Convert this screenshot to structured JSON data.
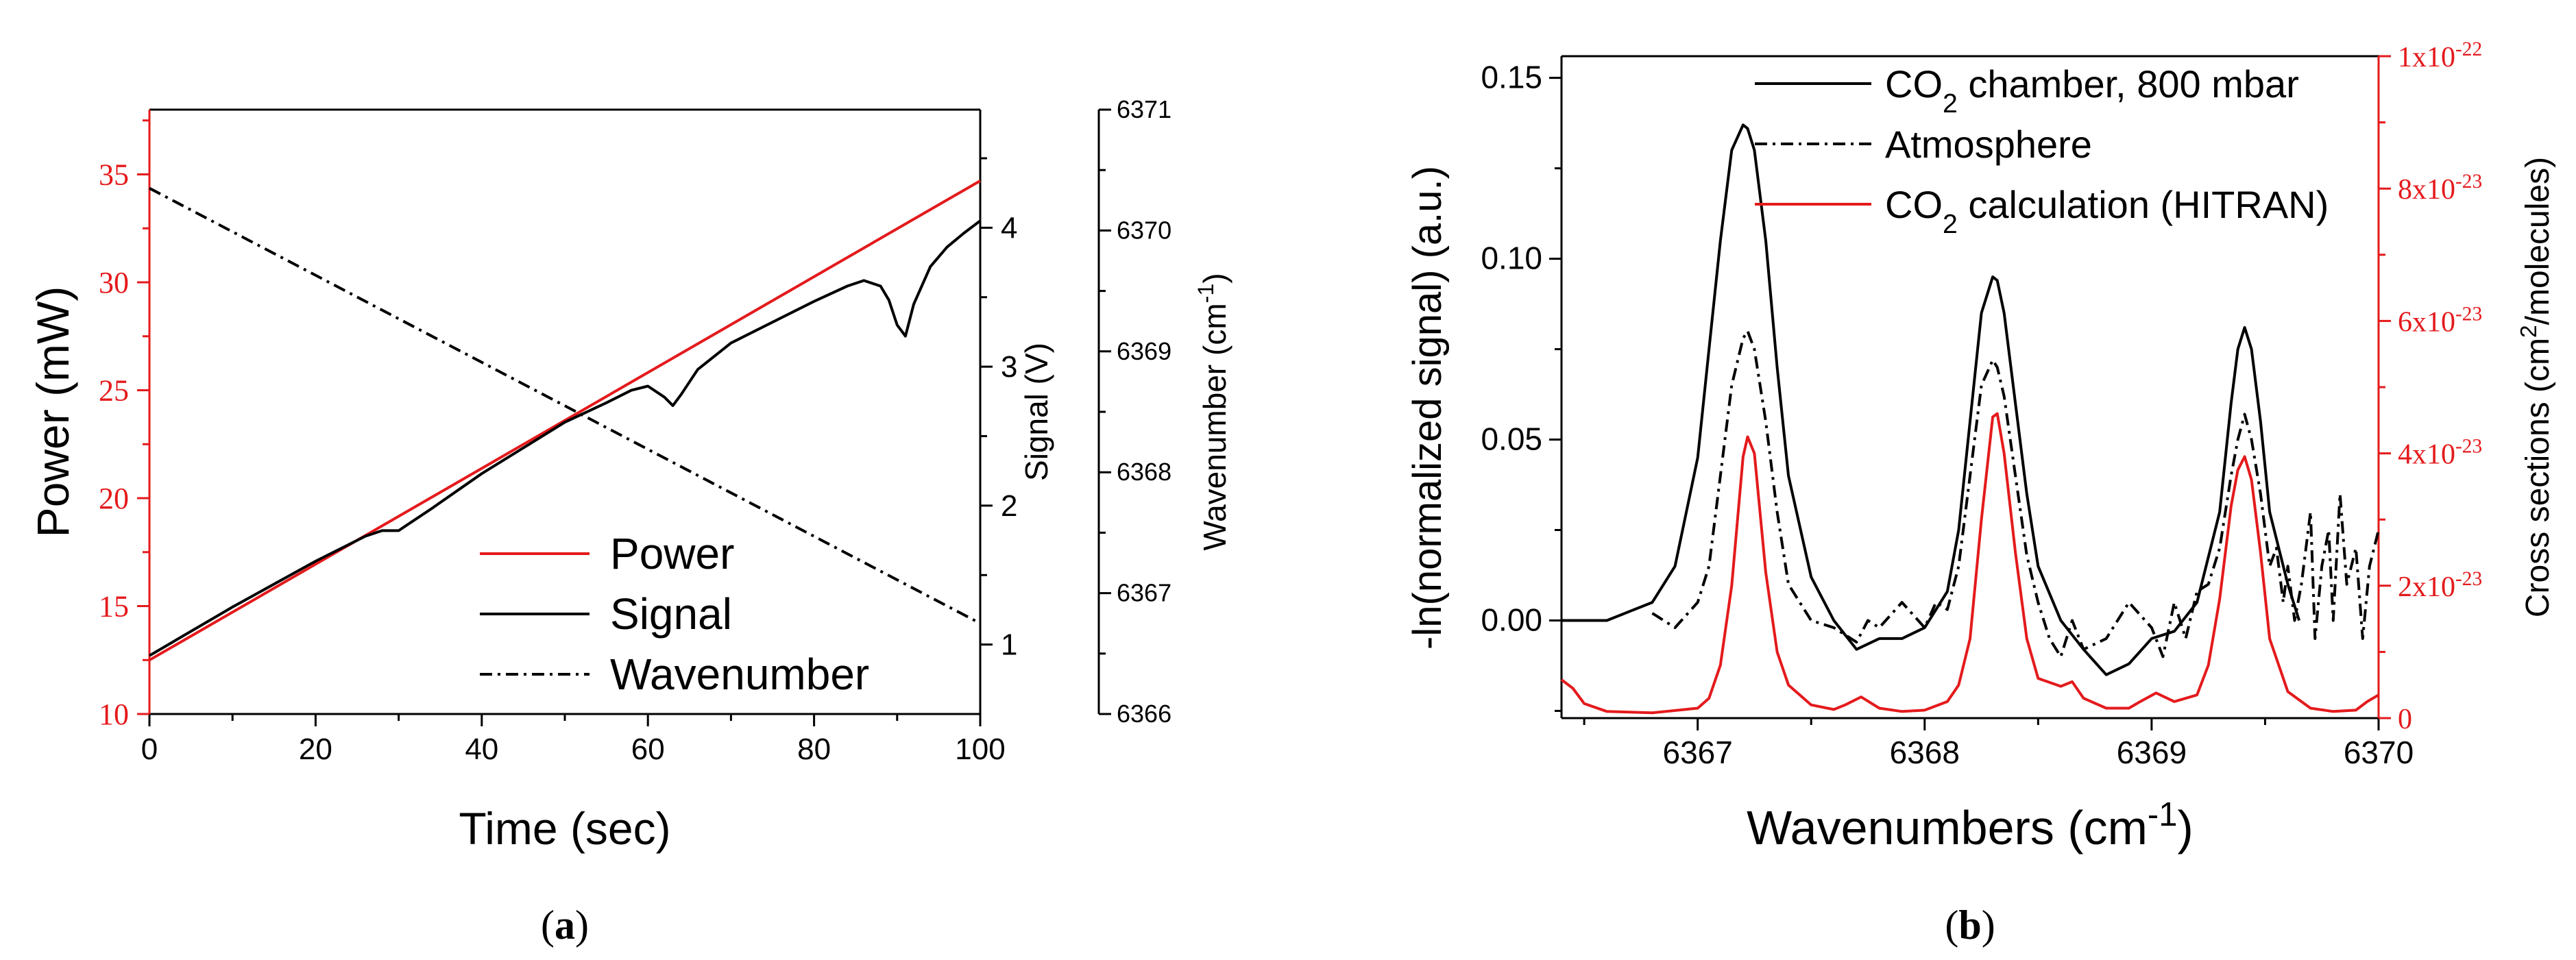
{
  "chart_data": [
    {
      "type": "line",
      "panel_label": "(a)",
      "panel_letter": "a",
      "xlabel": "Time (sec)",
      "xlim": [
        0,
        100
      ],
      "xticks": [
        0,
        20,
        40,
        60,
        80,
        100
      ],
      "axes": {
        "power": {
          "label": "Power (mW)",
          "ylim": [
            10,
            38
          ],
          "ticks": [
            10,
            15,
            20,
            25,
            30,
            35
          ],
          "color": "#e41a1c"
        },
        "signal": {
          "label": "Signal (V)",
          "ylim": [
            0.5,
            4.85
          ],
          "ticks": [
            1,
            2,
            3,
            4
          ],
          "color": "#000000"
        },
        "wavenumber": {
          "label": "Wavenumber (cm",
          "label_sup": "-1",
          "label_end": ")",
          "ylim": [
            6366,
            6371
          ],
          "ticks": [
            6366,
            6367,
            6368,
            6369,
            6370,
            6371
          ],
          "color": "#000000"
        }
      },
      "legend": {
        "position": "bottom-right",
        "entries": [
          {
            "label": "Power",
            "color": "#e41a1c",
            "style": "solid"
          },
          {
            "label": "Signal",
            "color": "#000000",
            "style": "solid"
          },
          {
            "label": "Wavenumber",
            "color": "#000000",
            "style": "dashdot"
          }
        ]
      },
      "series": [
        {
          "name": "Power",
          "axis": "power",
          "color": "#e41a1c",
          "style": "solid",
          "x": [
            0,
            100
          ],
          "y": [
            12.5,
            34.7
          ]
        },
        {
          "name": "Signal",
          "axis": "signal",
          "color": "#000000",
          "style": "solid",
          "x": [
            0,
            10,
            20,
            26,
            28,
            30,
            31,
            34,
            40,
            50,
            55,
            58,
            60,
            62,
            63,
            64,
            66,
            70,
            80,
            84,
            86,
            88,
            89,
            90,
            91,
            92,
            94,
            96,
            98,
            100
          ],
          "y": [
            0.92,
            1.27,
            1.6,
            1.78,
            1.82,
            1.82,
            1.86,
            1.98,
            2.23,
            2.6,
            2.74,
            2.83,
            2.86,
            2.78,
            2.72,
            2.8,
            2.98,
            3.17,
            3.47,
            3.58,
            3.62,
            3.58,
            3.48,
            3.3,
            3.22,
            3.45,
            3.72,
            3.86,
            3.96,
            4.05
          ]
        },
        {
          "name": "Wavenumber",
          "axis": "wavenumber",
          "color": "#000000",
          "style": "dashdot",
          "x": [
            0,
            100
          ],
          "y": [
            6370.35,
            6366.75
          ]
        }
      ]
    },
    {
      "type": "line",
      "panel_label": "(b)",
      "panel_letter": "b",
      "xlabel": "Wavenumbers (cm",
      "xlabel_sup": "-1",
      "xlabel_end": ")",
      "xlim": [
        6366.4,
        6370.0
      ],
      "xticks": [
        6367,
        6368,
        6369,
        6370
      ],
      "axes": {
        "left": {
          "label": "-ln(normalized signal) (a.u.)",
          "ylim": [
            -0.027,
            0.156
          ],
          "ticks": [
            0.0,
            0.05,
            0.1,
            0.15
          ],
          "tick_labels": [
            "0.00",
            "0.05",
            "0.10",
            "0.15"
          ],
          "color": "#000000"
        },
        "right": {
          "label": "Cross sections (cm",
          "label_sup": "2",
          "label_end": "/molecules)",
          "ylim": [
            0,
            1e-22
          ],
          "ticks": [
            0,
            2e-23,
            4e-23,
            6e-23,
            8e-23,
            1e-22
          ],
          "tick_labels": [
            {
              "base": "0",
              "exp": ""
            },
            {
              "base": "2x10",
              "exp": "-23"
            },
            {
              "base": "4x10",
              "exp": "-23"
            },
            {
              "base": "6x10",
              "exp": "-23"
            },
            {
              "base": "8x10",
              "exp": "-23"
            },
            {
              "base": "1x10",
              "exp": "-22"
            }
          ],
          "color": "#e41a1c"
        }
      },
      "legend": {
        "position": "top-right",
        "entries": [
          {
            "pre": "CO",
            "sub": "2",
            "post": " chamber, 800 mbar",
            "color": "#000000",
            "style": "solid"
          },
          {
            "pre": "Atmosphere",
            "sub": "",
            "post": "",
            "color": "#000000",
            "style": "dashdot"
          },
          {
            "pre": "CO",
            "sub": "2",
            "post": " calculation (HITRAN)",
            "color": "#e41a1c",
            "style": "solid"
          }
        ]
      },
      "series": [
        {
          "name": "CO2 chamber, 800 mbar",
          "axis": "left",
          "color": "#000000",
          "style": "solid",
          "x": [
            6366.4,
            6366.6,
            6366.8,
            6366.9,
            6367.0,
            6367.05,
            6367.1,
            6367.15,
            6367.2,
            6367.22,
            6367.25,
            6367.3,
            6367.35,
            6367.4,
            6367.5,
            6367.6,
            6367.7,
            6367.8,
            6367.9,
            6368.0,
            6368.1,
            6368.15,
            6368.2,
            6368.25,
            6368.3,
            6368.32,
            6368.35,
            6368.4,
            6368.45,
            6368.5,
            6368.6,
            6368.7,
            6368.8,
            6368.9,
            6369.0,
            6369.1,
            6369.2,
            6369.3,
            6369.35,
            6369.38,
            6369.41,
            6369.44,
            6369.48,
            6369.52,
            6369.6,
            6369.65
          ],
          "y": [
            0.0,
            0.0,
            0.005,
            0.015,
            0.045,
            0.075,
            0.105,
            0.13,
            0.137,
            0.136,
            0.13,
            0.105,
            0.07,
            0.04,
            0.012,
            0.0,
            -0.008,
            -0.005,
            -0.005,
            -0.002,
            0.008,
            0.025,
            0.055,
            0.085,
            0.095,
            0.094,
            0.085,
            0.06,
            0.035,
            0.015,
            0.0,
            -0.008,
            -0.015,
            -0.012,
            -0.005,
            -0.003,
            0.005,
            0.03,
            0.06,
            0.075,
            0.081,
            0.075,
            0.055,
            0.03,
            0.01,
            0.0
          ]
        },
        {
          "name": "Atmosphere",
          "axis": "left",
          "color": "#000000",
          "style": "dashdot",
          "x": [
            6366.8,
            6366.9,
            6367.0,
            6367.05,
            6367.1,
            6367.15,
            6367.2,
            6367.22,
            6367.25,
            6367.3,
            6367.35,
            6367.4,
            6367.5,
            6367.6,
            6367.7,
            6367.75,
            6367.8,
            6367.9,
            6368.0,
            6368.05,
            6368.1,
            6368.15,
            6368.2,
            6368.25,
            6368.3,
            6368.32,
            6368.35,
            6368.4,
            6368.45,
            6368.5,
            6368.55,
            6368.6,
            6368.65,
            6368.7,
            6368.8,
            6368.9,
            6369.0,
            6369.05,
            6369.1,
            6369.15,
            6369.2,
            6369.25,
            6369.3,
            6369.35,
            6369.38,
            6369.41,
            6369.44,
            6369.48,
            6369.52,
            6369.55,
            6369.58,
            6369.6,
            6369.63,
            6369.66,
            6369.7,
            6369.72,
            6369.75,
            6369.78,
            6369.8,
            6369.83,
            6369.86,
            6369.9,
            6369.93,
            6369.96,
            6370.0
          ],
          "y": [
            0.002,
            -0.002,
            0.005,
            0.015,
            0.04,
            0.065,
            0.078,
            0.08,
            0.075,
            0.055,
            0.03,
            0.01,
            0.0,
            -0.002,
            -0.006,
            0.0,
            -0.002,
            0.005,
            -0.002,
            0.005,
            0.003,
            0.015,
            0.04,
            0.065,
            0.072,
            0.07,
            0.062,
            0.04,
            0.018,
            0.005,
            -0.005,
            -0.01,
            0.0,
            -0.008,
            -0.005,
            0.005,
            -0.002,
            -0.01,
            0.005,
            -0.005,
            0.008,
            0.01,
            0.02,
            0.04,
            0.05,
            0.057,
            0.05,
            0.035,
            0.015,
            0.02,
            0.005,
            0.015,
            0.0,
            0.01,
            0.03,
            -0.005,
            0.015,
            0.025,
            0.0,
            0.035,
            0.01,
            0.02,
            -0.005,
            0.015,
            0.025
          ]
        },
        {
          "name": "CO2 calculation (HITRAN)",
          "axis": "right",
          "color": "#e41a1c",
          "style": "solid",
          "x": [
            6366.4,
            6366.45,
            6366.5,
            6366.6,
            6366.8,
            6367.0,
            6367.05,
            6367.1,
            6367.15,
            6367.2,
            6367.22,
            6367.25,
            6367.3,
            6367.35,
            6367.4,
            6367.5,
            6367.6,
            6367.65,
            6367.72,
            6367.8,
            6367.9,
            6368.0,
            6368.1,
            6368.15,
            6368.2,
            6368.25,
            6368.3,
            6368.32,
            6368.35,
            6368.4,
            6368.45,
            6368.5,
            6368.6,
            6368.65,
            6368.7,
            6368.8,
            6368.9,
            6368.95,
            6369.02,
            6369.1,
            6369.2,
            6369.25,
            6369.3,
            6369.35,
            6369.38,
            6369.41,
            6369.44,
            6369.48,
            6369.52,
            6369.6,
            6369.7,
            6369.8,
            6369.9,
            6369.95,
            6370.0
          ],
          "y": [
            5.8e-24,
            4.5e-24,
            2.2e-24,
            1e-24,
            8e-25,
            1.5e-24,
            3e-24,
            8e-24,
            2e-23,
            3.95e-23,
            4.25e-23,
            4e-23,
            2.2e-23,
            1e-23,
            5e-24,
            2e-24,
            1.3e-24,
            2e-24,
            3.2e-24,
            1.5e-24,
            1e-24,
            1.2e-24,
            2.5e-24,
            5e-24,
            1.2e-23,
            3e-23,
            4.55e-23,
            4.6e-23,
            4e-23,
            2.5e-23,
            1.2e-23,
            6e-24,
            4.8e-24,
            5.5e-24,
            3e-24,
            1.5e-24,
            1.5e-24,
            2.5e-24,
            3.8e-24,
            2.5e-24,
            3.5e-24,
            8e-24,
            1.8e-23,
            3.2e-23,
            3.75e-23,
            3.95e-23,
            3.6e-23,
            2.5e-23,
            1.2e-23,
            4e-24,
            1.5e-24,
            1e-24,
            1.2e-24,
            2.5e-24,
            3.5e-24
          ]
        }
      ]
    }
  ]
}
